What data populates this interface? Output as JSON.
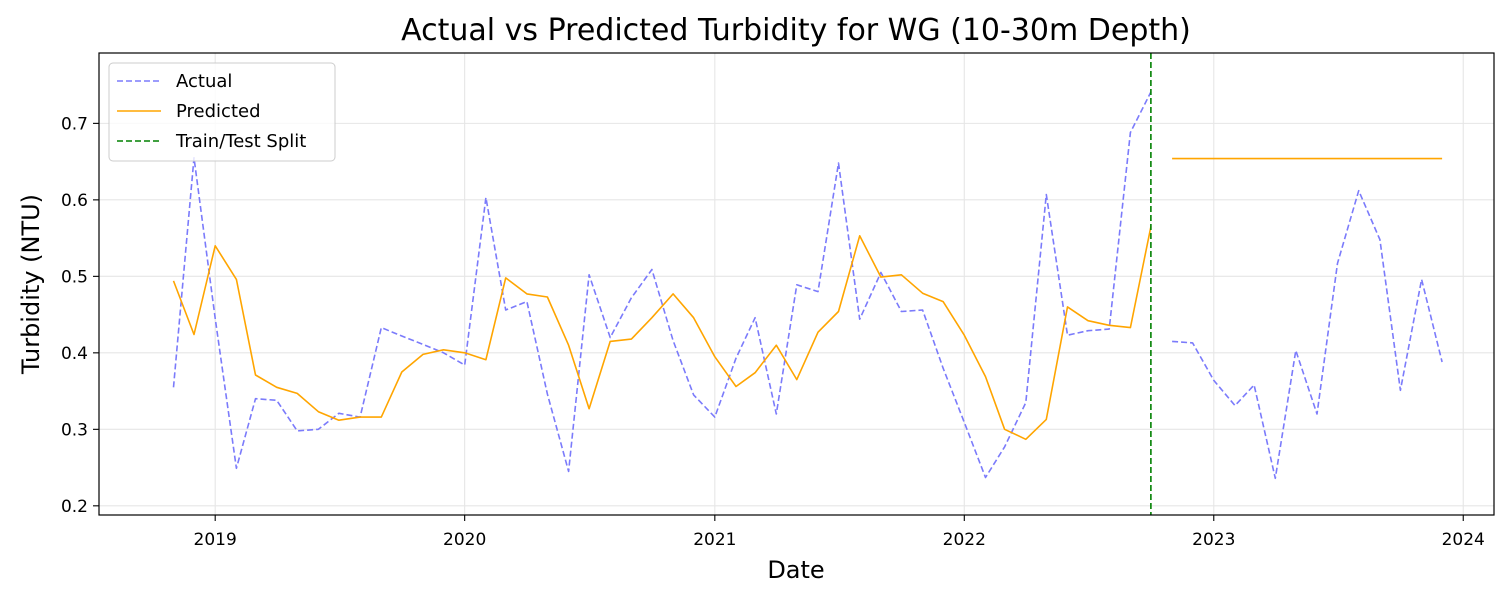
{
  "chart_data": {
    "type": "line",
    "title": "Actual vs Predicted Turbidity for WG (10-30m Depth)",
    "xlabel": "Date",
    "ylabel": "Turbidity (NTU)",
    "xlim": [
      "2018-07-15",
      "2024-02-15"
    ],
    "ylim": [
      0.188,
      0.792
    ],
    "xticks": [
      "2019",
      "2020",
      "2021",
      "2022",
      "2023",
      "2024"
    ],
    "yticks": [
      "0.2",
      "0.3",
      "0.4",
      "0.5",
      "0.6",
      "0.7"
    ],
    "grid": true,
    "legend_position": "top-left",
    "split": {
      "name": "Train/Test Split",
      "date": "2022-10-01",
      "color": "#008000"
    },
    "series": [
      {
        "name": "Actual",
        "color": "#7b7bfb",
        "style": "dashed",
        "points": [
          [
            "2018-11-01",
            0.355
          ],
          [
            "2018-12-01",
            0.655
          ],
          [
            "2019-01-01",
            0.445
          ],
          [
            "2019-02-01",
            0.249
          ],
          [
            "2019-03-01",
            0.34
          ],
          [
            "2019-04-01",
            0.338
          ],
          [
            "2019-05-01",
            0.298
          ],
          [
            "2019-06-01",
            0.3
          ],
          [
            "2019-07-01",
            0.321
          ],
          [
            "2019-08-01",
            0.316
          ],
          [
            "2019-09-01",
            0.433
          ],
          [
            "2019-10-01",
            0.422
          ],
          [
            "2019-11-01",
            0.411
          ],
          [
            "2019-12-01",
            0.4
          ],
          [
            "2020-01-01",
            0.384
          ],
          [
            "2020-02-01",
            0.603
          ],
          [
            "2020-03-01",
            0.456
          ],
          [
            "2020-04-01",
            0.467
          ],
          [
            "2020-05-01",
            0.346
          ],
          [
            "2020-06-01",
            0.245
          ],
          [
            "2020-07-01",
            0.502
          ],
          [
            "2020-08-01",
            0.42
          ],
          [
            "2020-09-01",
            0.472
          ],
          [
            "2020-10-01",
            0.509
          ],
          [
            "2020-11-01",
            0.416
          ],
          [
            "2020-12-01",
            0.345
          ],
          [
            "2021-01-01",
            0.316
          ],
          [
            "2021-02-01",
            0.393
          ],
          [
            "2021-03-01",
            0.446
          ],
          [
            "2021-04-01",
            0.32
          ],
          [
            "2021-05-01",
            0.489
          ],
          [
            "2021-06-01",
            0.48
          ],
          [
            "2021-07-01",
            0.648
          ],
          [
            "2021-08-01",
            0.444
          ],
          [
            "2021-09-01",
            0.505
          ],
          [
            "2021-10-01",
            0.454
          ],
          [
            "2021-11-01",
            0.456
          ],
          [
            "2021-12-01",
            0.38
          ],
          [
            "2022-01-01",
            0.309
          ],
          [
            "2022-02-01",
            0.237
          ],
          [
            "2022-03-01",
            0.277
          ],
          [
            "2022-04-01",
            0.335
          ],
          [
            "2022-05-01",
            0.607
          ],
          [
            "2022-06-01",
            0.423
          ],
          [
            "2022-07-01",
            0.429
          ],
          [
            "2022-08-01",
            0.431
          ],
          [
            "2022-09-01",
            0.688
          ],
          [
            "2022-10-01",
            0.741
          ],
          null,
          [
            "2022-11-01",
            0.415
          ],
          [
            "2022-12-01",
            0.413
          ],
          [
            "2023-01-01",
            0.364
          ],
          [
            "2023-02-01",
            0.331
          ],
          [
            "2023-03-01",
            0.358
          ],
          [
            "2023-04-01",
            0.236
          ],
          [
            "2023-05-01",
            0.403
          ],
          [
            "2023-06-01",
            0.32
          ],
          [
            "2023-07-01",
            0.517
          ],
          [
            "2023-08-01",
            0.612
          ],
          [
            "2023-09-01",
            0.548
          ],
          [
            "2023-10-01",
            0.351
          ],
          [
            "2023-11-01",
            0.496
          ],
          [
            "2023-12-01",
            0.388
          ]
        ]
      },
      {
        "name": "Predicted",
        "color": "#ffa500",
        "style": "solid",
        "points": [
          [
            "2018-11-01",
            0.494
          ],
          [
            "2018-12-01",
            0.424
          ],
          [
            "2019-01-01",
            0.54
          ],
          [
            "2019-02-01",
            0.496
          ],
          [
            "2019-03-01",
            0.371
          ],
          [
            "2019-04-01",
            0.355
          ],
          [
            "2019-05-01",
            0.347
          ],
          [
            "2019-06-01",
            0.323
          ],
          [
            "2019-07-01",
            0.312
          ],
          [
            "2019-08-01",
            0.316
          ],
          [
            "2019-09-01",
            0.316
          ],
          [
            "2019-10-01",
            0.375
          ],
          [
            "2019-11-01",
            0.398
          ],
          [
            "2019-12-01",
            0.404
          ],
          [
            "2020-01-01",
            0.4
          ],
          [
            "2020-02-01",
            0.391
          ],
          [
            "2020-03-01",
            0.498
          ],
          [
            "2020-04-01",
            0.477
          ],
          [
            "2020-05-01",
            0.473
          ],
          [
            "2020-06-01",
            0.41
          ],
          [
            "2020-07-01",
            0.327
          ],
          [
            "2020-08-01",
            0.415
          ],
          [
            "2020-09-01",
            0.418
          ],
          [
            "2020-10-01",
            0.446
          ],
          [
            "2020-11-01",
            0.477
          ],
          [
            "2020-12-01",
            0.446
          ],
          [
            "2021-01-01",
            0.395
          ],
          [
            "2021-02-01",
            0.356
          ],
          [
            "2021-03-01",
            0.374
          ],
          [
            "2021-04-01",
            0.41
          ],
          [
            "2021-05-01",
            0.365
          ],
          [
            "2021-06-01",
            0.427
          ],
          [
            "2021-07-01",
            0.454
          ],
          [
            "2021-08-01",
            0.553
          ],
          [
            "2021-09-01",
            0.499
          ],
          [
            "2021-10-01",
            0.502
          ],
          [
            "2021-11-01",
            0.478
          ],
          [
            "2021-12-01",
            0.467
          ],
          [
            "2022-01-01",
            0.423
          ],
          [
            "2022-02-01",
            0.369
          ],
          [
            "2022-03-01",
            0.3
          ],
          [
            "2022-04-01",
            0.287
          ],
          [
            "2022-05-01",
            0.313
          ],
          [
            "2022-06-01",
            0.46
          ],
          [
            "2022-07-01",
            0.442
          ],
          [
            "2022-08-01",
            0.436
          ],
          [
            "2022-09-01",
            0.433
          ],
          [
            "2022-10-01",
            0.565
          ],
          null,
          [
            "2022-11-01",
            0.654
          ],
          [
            "2023-12-01",
            0.654
          ]
        ]
      }
    ]
  }
}
